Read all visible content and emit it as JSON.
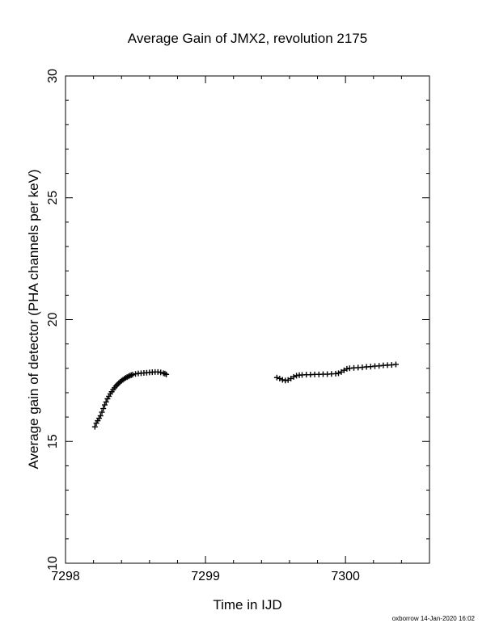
{
  "chart_data": {
    "type": "scatter",
    "title": "Average Gain of JMX2, revolution 2175",
    "xlabel": "Time in IJD",
    "ylabel": "Average gain of detector (PHA channels per keV)",
    "xlim": [
      7298,
      7300.6
    ],
    "ylim": [
      10,
      30
    ],
    "x_ticks": [
      7298,
      7299,
      7300
    ],
    "x_tick_labels": [
      "7298",
      "7299",
      "7300"
    ],
    "y_ticks": [
      10,
      15,
      20,
      25,
      30
    ],
    "y_tick_labels": [
      "10",
      "15",
      "20",
      "25",
      "30"
    ],
    "grid": false,
    "marker": "+",
    "series": [
      {
        "values": [
          [
            7298.21,
            15.6
          ],
          [
            7298.22,
            15.75
          ],
          [
            7298.23,
            15.85
          ],
          [
            7298.24,
            15.95
          ],
          [
            7298.25,
            16.05
          ],
          [
            7298.26,
            16.2
          ],
          [
            7298.27,
            16.35
          ],
          [
            7298.28,
            16.5
          ],
          [
            7298.29,
            16.62
          ],
          [
            7298.3,
            16.75
          ],
          [
            7298.31,
            16.85
          ],
          [
            7298.32,
            16.95
          ],
          [
            7298.33,
            17.04
          ],
          [
            7298.34,
            17.12
          ],
          [
            7298.35,
            17.2
          ],
          [
            7298.36,
            17.27
          ],
          [
            7298.37,
            17.33
          ],
          [
            7298.38,
            17.39
          ],
          [
            7298.39,
            17.44
          ],
          [
            7298.4,
            17.49
          ],
          [
            7298.41,
            17.53
          ],
          [
            7298.42,
            17.57
          ],
          [
            7298.43,
            17.61
          ],
          [
            7298.44,
            17.64
          ],
          [
            7298.45,
            17.67
          ],
          [
            7298.46,
            17.7
          ],
          [
            7298.47,
            17.72
          ],
          [
            7298.48,
            17.74
          ],
          [
            7298.5,
            17.77
          ],
          [
            7298.52,
            17.79
          ],
          [
            7298.54,
            17.8
          ],
          [
            7298.56,
            17.81
          ],
          [
            7298.58,
            17.82
          ],
          [
            7298.6,
            17.83
          ],
          [
            7298.62,
            17.84
          ],
          [
            7298.64,
            17.85
          ],
          [
            7298.66,
            17.85
          ],
          [
            7298.68,
            17.83
          ],
          [
            7298.7,
            17.8
          ],
          [
            7298.71,
            17.78
          ],
          [
            7298.72,
            17.75
          ],
          [
            7299.51,
            17.62
          ],
          [
            7299.53,
            17.58
          ],
          [
            7299.55,
            17.53
          ],
          [
            7299.57,
            17.5
          ],
          [
            7299.59,
            17.52
          ],
          [
            7299.61,
            17.58
          ],
          [
            7299.63,
            17.65
          ],
          [
            7299.65,
            17.7
          ],
          [
            7299.67,
            17.72
          ],
          [
            7299.69,
            17.73
          ],
          [
            7299.72,
            17.74
          ],
          [
            7299.75,
            17.74
          ],
          [
            7299.78,
            17.75
          ],
          [
            7299.81,
            17.75
          ],
          [
            7299.84,
            17.76
          ],
          [
            7299.87,
            17.76
          ],
          [
            7299.9,
            17.77
          ],
          [
            7299.93,
            17.78
          ],
          [
            7299.95,
            17.8
          ],
          [
            7299.97,
            17.85
          ],
          [
            7299.99,
            17.92
          ],
          [
            7300.01,
            17.98
          ],
          [
            7300.03,
            18.0
          ],
          [
            7300.06,
            18.02
          ],
          [
            7300.09,
            18.03
          ],
          [
            7300.12,
            18.04
          ],
          [
            7300.15,
            18.06
          ],
          [
            7300.18,
            18.07
          ],
          [
            7300.21,
            18.09
          ],
          [
            7300.24,
            18.1
          ],
          [
            7300.27,
            18.12
          ],
          [
            7300.3,
            18.13
          ],
          [
            7300.33,
            18.14
          ],
          [
            7300.36,
            18.16
          ]
        ]
      }
    ]
  },
  "footer": "oxborrow 14-Jan-2020 16:02"
}
